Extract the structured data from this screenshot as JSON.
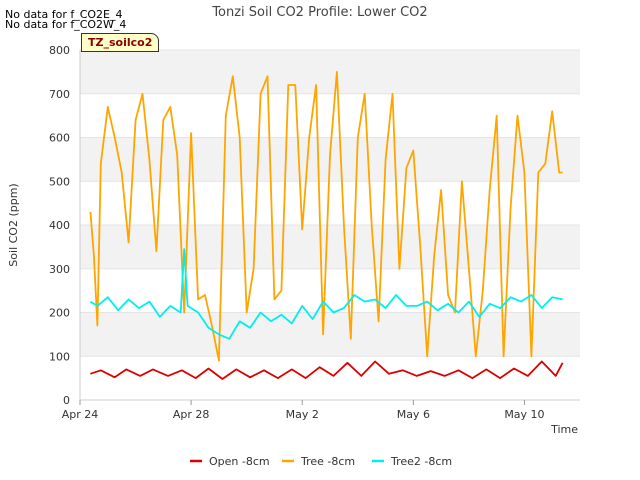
{
  "notes": [
    "No data for f_CO2E_4",
    "No data for f_CO2W_4"
  ],
  "tag_label": "TZ_soilco2",
  "chart_data": {
    "type": "line",
    "title": "Tonzi Soil CO2 Profile: Lower CO2",
    "xlabel": "Time",
    "ylabel": "Soil CO2 (ppm)",
    "xlim": [
      "2023-04-24",
      "2023-05-12"
    ],
    "ylim": [
      0,
      800
    ],
    "yticks": [
      0,
      100,
      200,
      300,
      400,
      500,
      600,
      700,
      800
    ],
    "xticks": [
      {
        "date": "2023-04-24",
        "label": "Apr 24"
      },
      {
        "date": "2023-04-28",
        "label": "Apr 28"
      },
      {
        "date": "2023-05-02",
        "label": "May 2"
      },
      {
        "date": "2023-05-06",
        "label": "May 6"
      },
      {
        "date": "2023-05-10",
        "label": "May 10"
      }
    ],
    "grid": true,
    "legend_position": "bottom",
    "series": [
      {
        "name": "Open -8cm",
        "color": "#dd0000",
        "x": [
          "2023-04-24T09:00",
          "2023-04-24T18:00",
          "2023-04-25T06:00",
          "2023-04-25T16:00",
          "2023-04-26T04:00",
          "2023-04-26T15:00",
          "2023-04-27T04:00",
          "2023-04-27T16:00",
          "2023-04-28T04:00",
          "2023-04-28T15:00",
          "2023-04-29T03:00",
          "2023-04-29T15:00",
          "2023-04-30T03:00",
          "2023-04-30T15:00",
          "2023-05-01T03:00",
          "2023-05-01T15:00",
          "2023-05-02T03:00",
          "2023-05-02T15:00",
          "2023-05-03T03:00",
          "2023-05-03T15:00",
          "2023-05-04T03:00",
          "2023-05-04T15:00",
          "2023-05-05T03:00",
          "2023-05-05T15:00",
          "2023-05-06T03:00",
          "2023-05-06T15:00",
          "2023-05-07T03:00",
          "2023-05-07T15:00",
          "2023-05-08T03:00",
          "2023-05-08T15:00",
          "2023-05-09T03:00",
          "2023-05-09T15:00",
          "2023-05-10T03:00",
          "2023-05-10T15:00",
          "2023-05-11T03:00",
          "2023-05-11T09:00"
        ],
        "values": [
          60,
          68,
          52,
          70,
          55,
          70,
          55,
          68,
          50,
          72,
          48,
          70,
          52,
          68,
          50,
          70,
          50,
          75,
          55,
          85,
          55,
          88,
          60,
          68,
          55,
          66,
          55,
          68,
          50,
          70,
          50,
          72,
          55,
          88,
          55,
          85
        ]
      },
      {
        "name": "Tree -8cm",
        "color": "#ffa500",
        "x": [
          "2023-04-24T09:00",
          "2023-04-24T12:00",
          "2023-04-24T15:00",
          "2023-04-24T18:00",
          "2023-04-25T00:00",
          "2023-04-25T06:00",
          "2023-04-25T12:00",
          "2023-04-25T18:00",
          "2023-04-26T00:00",
          "2023-04-26T06:00",
          "2023-04-26T12:00",
          "2023-04-26T18:00",
          "2023-04-27T00:00",
          "2023-04-27T06:00",
          "2023-04-27T12:00",
          "2023-04-27T18:00",
          "2023-04-28T00:00",
          "2023-04-28T06:00",
          "2023-04-28T12:00",
          "2023-04-28T18:00",
          "2023-04-29T00:00",
          "2023-04-29T06:00",
          "2023-04-29T12:00",
          "2023-04-29T18:00",
          "2023-04-30T00:00",
          "2023-04-30T06:00",
          "2023-04-30T12:00",
          "2023-04-30T18:00",
          "2023-05-01T00:00",
          "2023-05-01T06:00",
          "2023-05-01T12:00",
          "2023-05-01T18:00",
          "2023-05-02T00:00",
          "2023-05-02T06:00",
          "2023-05-02T12:00",
          "2023-05-02T18:00",
          "2023-05-03T00:00",
          "2023-05-03T06:00",
          "2023-05-03T12:00",
          "2023-05-03T18:00",
          "2023-05-04T00:00",
          "2023-05-04T06:00",
          "2023-05-04T12:00",
          "2023-05-04T18:00",
          "2023-05-05T00:00",
          "2023-05-05T06:00",
          "2023-05-05T12:00",
          "2023-05-05T18:00",
          "2023-05-06T00:00",
          "2023-05-06T06:00",
          "2023-05-06T12:00",
          "2023-05-06T18:00",
          "2023-05-07T00:00",
          "2023-05-07T06:00",
          "2023-05-07T12:00",
          "2023-05-07T18:00",
          "2023-05-08T00:00",
          "2023-05-08T06:00",
          "2023-05-08T12:00",
          "2023-05-08T18:00",
          "2023-05-09T00:00",
          "2023-05-09T06:00",
          "2023-05-09T12:00",
          "2023-05-09T18:00",
          "2023-05-10T00:00",
          "2023-05-10T06:00",
          "2023-05-10T12:00",
          "2023-05-10T18:00",
          "2023-05-11T00:00",
          "2023-05-11T06:00",
          "2023-05-11T09:00"
        ],
        "values": [
          430,
          330,
          170,
          540,
          670,
          600,
          520,
          360,
          640,
          700,
          550,
          340,
          640,
          670,
          560,
          200,
          610,
          230,
          240,
          170,
          90,
          650,
          740,
          600,
          200,
          300,
          700,
          740,
          230,
          250,
          720,
          720,
          390,
          600,
          720,
          150,
          560,
          750,
          400,
          140,
          600,
          700,
          400,
          180,
          550,
          700,
          300,
          530,
          570,
          350,
          100,
          330,
          480,
          240,
          200,
          500,
          300,
          100,
          250,
          480,
          650,
          100,
          440,
          650,
          520,
          100,
          520,
          540,
          660,
          520,
          520
        ]
      },
      {
        "name": "Tree2 -8cm",
        "color": "#00eeee",
        "x": [
          "2023-04-24T09:00",
          "2023-04-24T15:00",
          "2023-04-25T00:00",
          "2023-04-25T09:00",
          "2023-04-25T18:00",
          "2023-04-26T03:00",
          "2023-04-26T12:00",
          "2023-04-26T21:00",
          "2023-04-27T06:00",
          "2023-04-27T15:00",
          "2023-04-27T18:00",
          "2023-04-27T21:00",
          "2023-04-28T06:00",
          "2023-04-28T15:00",
          "2023-04-29T00:00",
          "2023-04-29T09:00",
          "2023-04-29T18:00",
          "2023-04-30T03:00",
          "2023-04-30T12:00",
          "2023-04-30T21:00",
          "2023-05-01T06:00",
          "2023-05-01T15:00",
          "2023-05-02T00:00",
          "2023-05-02T09:00",
          "2023-05-02T18:00",
          "2023-05-03T03:00",
          "2023-05-03T12:00",
          "2023-05-03T21:00",
          "2023-05-04T06:00",
          "2023-05-04T15:00",
          "2023-05-05T00:00",
          "2023-05-05T09:00",
          "2023-05-05T18:00",
          "2023-05-06T03:00",
          "2023-05-06T12:00",
          "2023-05-06T21:00",
          "2023-05-07T06:00",
          "2023-05-07T15:00",
          "2023-05-08T00:00",
          "2023-05-08T09:00",
          "2023-05-08T18:00",
          "2023-05-09T03:00",
          "2023-05-09T12:00",
          "2023-05-09T21:00",
          "2023-05-10T06:00",
          "2023-05-10T15:00",
          "2023-05-11T00:00",
          "2023-05-11T09:00"
        ],
        "values": [
          225,
          215,
          235,
          205,
          230,
          210,
          225,
          190,
          215,
          200,
          345,
          215,
          200,
          165,
          150,
          140,
          180,
          165,
          200,
          180,
          195,
          175,
          215,
          185,
          225,
          200,
          210,
          240,
          225,
          230,
          210,
          240,
          215,
          215,
          225,
          205,
          220,
          200,
          225,
          190,
          220,
          210,
          235,
          225,
          240,
          210,
          235,
          230
        ]
      }
    ]
  }
}
